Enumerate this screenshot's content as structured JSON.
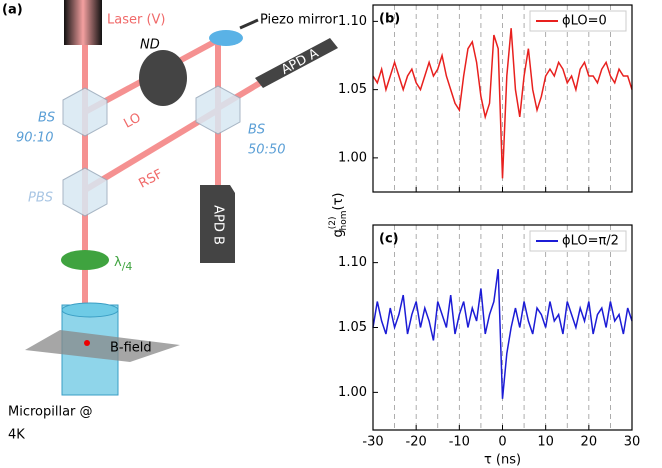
{
  "diagram": {
    "panel": "(a)",
    "laser": "Laser (V)",
    "mirror": "Piezo mirror",
    "nd": "ND",
    "apd_a": "APD A",
    "apd_b": "APD B",
    "bs1": "BS",
    "bs1_ratio": "90:10",
    "bs2": "BS",
    "bs2_ratio": "50:50",
    "pbs": "PBS",
    "lo": "LO",
    "rsf": "RSF",
    "waveplate": {
      "main": "λ",
      "sub": "/4"
    },
    "bfield": "B-field",
    "sample": [
      "Micropillar @",
      "4K"
    ]
  },
  "chart_data": [
    {
      "type": "line",
      "panel": "(b)",
      "legend": "upper right",
      "xtick_labels": false,
      "x": [
        -30,
        -29,
        -28,
        -27,
        -26,
        -25,
        -24,
        -23,
        -22,
        -21,
        -20,
        -19,
        -18,
        -17,
        -16,
        -15,
        -14,
        -13,
        -12,
        -11,
        -10,
        -9,
        -8,
        -7,
        -6,
        -5,
        -4,
        -3,
        -2,
        -1,
        0,
        1,
        2,
        3,
        4,
        5,
        6,
        7,
        8,
        9,
        10,
        11,
        12,
        13,
        14,
        15,
        16,
        17,
        18,
        19,
        20,
        21,
        22,
        23,
        24,
        25,
        26,
        27,
        28,
        29,
        30
      ],
      "series": [
        {
          "name": "ϕLO=0",
          "color": "#e8201e",
          "values": [
            1.06,
            1.055,
            1.065,
            1.05,
            1.06,
            1.07,
            1.06,
            1.05,
            1.06,
            1.065,
            1.055,
            1.05,
            1.06,
            1.07,
            1.06,
            1.065,
            1.075,
            1.06,
            1.05,
            1.04,
            1.035,
            1.06,
            1.08,
            1.085,
            1.07,
            1.045,
            1.03,
            1.04,
            1.09,
            1.08,
            0.985,
            1.06,
            1.095,
            1.05,
            1.03,
            1.06,
            1.08,
            1.05,
            1.035,
            1.045,
            1.06,
            1.065,
            1.06,
            1.07,
            1.065,
            1.055,
            1.06,
            1.05,
            1.065,
            1.07,
            1.06,
            1.06,
            1.055,
            1.065,
            1.07,
            1.06,
            1.055,
            1.065,
            1.06,
            1.06,
            1.05
          ]
        }
      ],
      "xlim": [
        -30,
        30
      ],
      "xticks": [
        -30,
        -20,
        -10,
        0,
        10,
        20,
        30
      ],
      "xgrid": [
        -25,
        -20,
        -15,
        -10,
        -5,
        0,
        5,
        10,
        15,
        20,
        25
      ],
      "ylim": [
        0.975,
        1.112
      ],
      "yticks": [
        {
          "value": 1,
          "label": "1.00"
        },
        {
          "value": 1.05,
          "label": "1.05"
        },
        {
          "value": 1.1,
          "label": "1.10"
        }
      ]
    },
    {
      "type": "line",
      "panel": "(c)",
      "legend": "upper right",
      "xtick_labels": true,
      "xlabel": "τ (ns)",
      "ylabel": {
        "main": "g",
        "sup": "(2)",
        "sub": "hom",
        "arg": "(τ)"
      },
      "x": [
        -30,
        -29,
        -28,
        -27,
        -26,
        -25,
        -24,
        -23,
        -22,
        -21,
        -20,
        -19,
        -18,
        -17,
        -16,
        -15,
        -14,
        -13,
        -12,
        -11,
        -10,
        -9,
        -8,
        -7,
        -6,
        -5,
        -4,
        -3,
        -2,
        -1,
        0,
        1,
        2,
        3,
        4,
        5,
        6,
        7,
        8,
        9,
        10,
        11,
        12,
        13,
        14,
        15,
        16,
        17,
        18,
        19,
        20,
        21,
        22,
        23,
        24,
        25,
        26,
        27,
        28,
        29,
        30
      ],
      "series": [
        {
          "name": "ϕLO=π/2",
          "color": "#1c1cd6",
          "values": [
            1.05,
            1.07,
            1.055,
            1.045,
            1.065,
            1.05,
            1.06,
            1.075,
            1.045,
            1.06,
            1.07,
            1.05,
            1.065,
            1.055,
            1.04,
            1.07,
            1.06,
            1.05,
            1.075,
            1.045,
            1.06,
            1.07,
            1.05,
            1.065,
            1.055,
            1.08,
            1.045,
            1.06,
            1.07,
            1.095,
            0.995,
            1.03,
            1.05,
            1.065,
            1.05,
            1.07,
            1.055,
            1.045,
            1.065,
            1.06,
            1.05,
            1.07,
            1.055,
            1.06,
            1.045,
            1.07,
            1.06,
            1.05,
            1.065,
            1.055,
            1.07,
            1.045,
            1.06,
            1.065,
            1.05,
            1.07,
            1.055,
            1.06,
            1.045,
            1.065,
            1.055
          ]
        }
      ],
      "xlim": [
        -30,
        30
      ],
      "xticks": [
        -30,
        -20,
        -10,
        0,
        10,
        20,
        30
      ],
      "xgrid": [
        -25,
        -20,
        -15,
        -10,
        -5,
        0,
        5,
        10,
        15,
        20,
        25
      ],
      "ylim": [
        0.971,
        1.129
      ],
      "yticks": [
        {
          "value": 1,
          "label": "1.00"
        },
        {
          "value": 1.05,
          "label": "1.05"
        },
        {
          "value": 1.1,
          "label": "1.10"
        }
      ]
    }
  ]
}
